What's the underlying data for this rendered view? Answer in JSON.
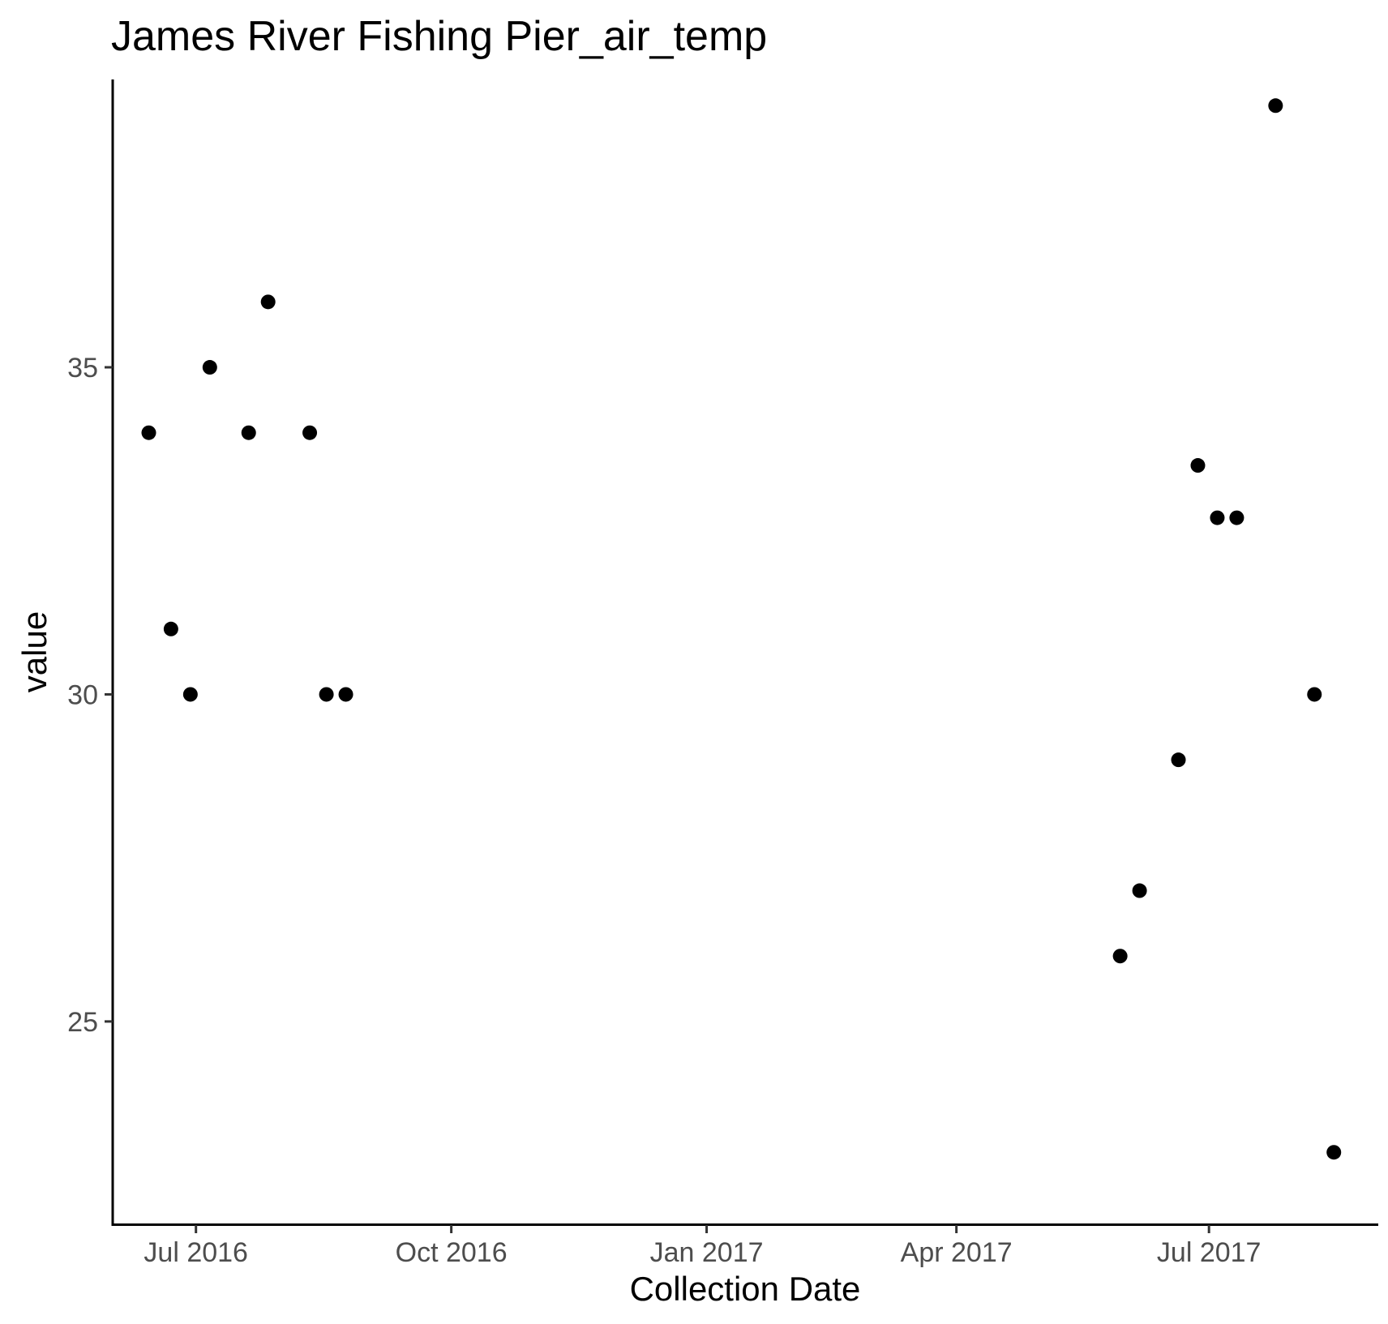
{
  "chart_data": {
    "type": "scatter",
    "title": "James River Fishing Pier_air_temp",
    "xlabel": "Collection Date",
    "ylabel": "value",
    "x_axis_type": "date",
    "xlim": [
      "2016-06-01",
      "2017-08-31"
    ],
    "ylim": [
      21.9,
      39.4
    ],
    "x_ticks": [
      {
        "date": "2016-07-01",
        "label": "Jul 2016"
      },
      {
        "date": "2016-10-01",
        "label": "Oct 2016"
      },
      {
        "date": "2017-01-01",
        "label": "Jan 2017"
      },
      {
        "date": "2017-04-01",
        "label": "Apr 2017"
      },
      {
        "date": "2017-07-01",
        "label": "Jul 2017"
      }
    ],
    "y_ticks": [
      {
        "value": 25,
        "label": "25"
      },
      {
        "value": 30,
        "label": "30"
      },
      {
        "value": 35,
        "label": "35"
      }
    ],
    "grid": false,
    "legend": "none",
    "point_color": "#000000",
    "points": [
      {
        "x": "2016-06-14",
        "y": 34
      },
      {
        "x": "2016-06-22",
        "y": 31
      },
      {
        "x": "2016-06-29",
        "y": 30
      },
      {
        "x": "2016-07-06",
        "y": 35
      },
      {
        "x": "2016-07-20",
        "y": 34
      },
      {
        "x": "2016-07-27",
        "y": 36
      },
      {
        "x": "2016-08-11",
        "y": 34
      },
      {
        "x": "2016-08-17",
        "y": 30
      },
      {
        "x": "2016-08-24",
        "y": 30
      },
      {
        "x": "2017-05-30",
        "y": 26
      },
      {
        "x": "2017-06-06",
        "y": 27
      },
      {
        "x": "2017-06-20",
        "y": 29
      },
      {
        "x": "2017-06-27",
        "y": 33.5
      },
      {
        "x": "2017-07-04",
        "y": 32.7
      },
      {
        "x": "2017-07-11",
        "y": 32.7
      },
      {
        "x": "2017-07-25",
        "y": 39
      },
      {
        "x": "2017-08-08",
        "y": 30
      },
      {
        "x": "2017-08-15",
        "y": 23
      }
    ]
  }
}
